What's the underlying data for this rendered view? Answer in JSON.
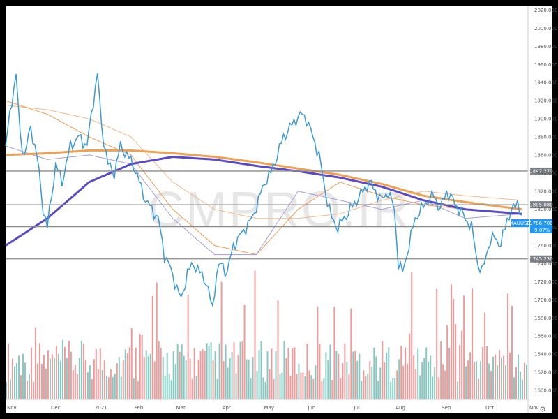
{
  "chart_data": {
    "type": "line",
    "symbol": "XAUUSD",
    "watermark": "CMPRO.IR",
    "ylim": [
      1590,
      2025
    ],
    "y_ticks": [
      1600,
      1620,
      1640,
      1660,
      1680,
      1700,
      1720,
      1740,
      1760,
      1780,
      1800,
      1820,
      1840,
      1860,
      1880,
      1900,
      1920,
      1940,
      1960,
      1980,
      2000,
      2020
    ],
    "x_ticks": [
      {
        "label": "Nov",
        "i": 0
      },
      {
        "label": "Dec",
        "i": 21
      },
      {
        "label": "2021",
        "i": 42
      },
      {
        "label": "Feb",
        "i": 61
      },
      {
        "label": "Mar",
        "i": 81
      },
      {
        "label": "Apr",
        "i": 103
      },
      {
        "label": "May",
        "i": 123
      },
      {
        "label": "Jun",
        "i": 144
      },
      {
        "label": "Jul",
        "i": 166
      },
      {
        "label": "Aug",
        "i": 186
      },
      {
        "label": "Sep",
        "i": 208
      },
      {
        "label": "Oct",
        "i": 229
      },
      {
        "label": "Nov",
        "i": 250
      }
    ],
    "levels": [
      {
        "label": "1842.270",
        "value": 1842.27
      },
      {
        "label": "1805.080",
        "value": 1805.08
      },
      {
        "label": "1780.820",
        "value": 1780.82
      },
      {
        "label": "1745.230",
        "value": 1745.23
      }
    ],
    "last_price": {
      "value": 1786.7,
      "label": "1786.700",
      "change": "-9.07%"
    },
    "price_series": {
      "name": "XAUUSD",
      "anchors": [
        [
          0,
          1870
        ],
        [
          3,
          1920
        ],
        [
          5,
          1950
        ],
        [
          7,
          1880
        ],
        [
          9,
          1860
        ],
        [
          12,
          1890
        ],
        [
          15,
          1860
        ],
        [
          18,
          1800
        ],
        [
          20,
          1780
        ],
        [
          24,
          1850
        ],
        [
          27,
          1830
        ],
        [
          31,
          1870
        ],
        [
          35,
          1880
        ],
        [
          39,
          1870
        ],
        [
          42,
          1920
        ],
        [
          44,
          1950
        ],
        [
          46,
          1890
        ],
        [
          49,
          1850
        ],
        [
          52,
          1840
        ],
        [
          55,
          1870
        ],
        [
          58,
          1860
        ],
        [
          61,
          1850
        ],
        [
          64,
          1830
        ],
        [
          67,
          1810
        ],
        [
          70,
          1800
        ],
        [
          73,
          1790
        ],
        [
          76,
          1750
        ],
        [
          78,
          1740
        ],
        [
          81,
          1720
        ],
        [
          84,
          1700
        ],
        [
          87,
          1730
        ],
        [
          90,
          1740
        ],
        [
          93,
          1730
        ],
        [
          96,
          1720
        ],
        [
          99,
          1690
        ],
        [
          101,
          1730
        ],
        [
          103,
          1740
        ],
        [
          106,
          1730
        ],
        [
          109,
          1760
        ],
        [
          112,
          1770
        ],
        [
          115,
          1780
        ],
        [
          118,
          1790
        ],
        [
          121,
          1810
        ],
        [
          124,
          1830
        ],
        [
          127,
          1840
        ],
        [
          130,
          1860
        ],
        [
          133,
          1880
        ],
        [
          136,
          1890
        ],
        [
          139,
          1900
        ],
        [
          142,
          1905
        ],
        [
          144,
          1900
        ],
        [
          147,
          1880
        ],
        [
          150,
          1860
        ],
        [
          153,
          1820
        ],
        [
          156,
          1790
        ],
        [
          159,
          1780
        ],
        [
          162,
          1790
        ],
        [
          165,
          1800
        ],
        [
          168,
          1810
        ],
        [
          171,
          1820
        ],
        [
          174,
          1830
        ],
        [
          177,
          1820
        ],
        [
          180,
          1810
        ],
        [
          183,
          1820
        ],
        [
          186,
          1800
        ],
        [
          188,
          1740
        ],
        [
          190,
          1730
        ],
        [
          193,
          1760
        ],
        [
          196,
          1790
        ],
        [
          199,
          1800
        ],
        [
          202,
          1810
        ],
        [
          205,
          1815
        ],
        [
          208,
          1800
        ],
        [
          211,
          1820
        ],
        [
          214,
          1810
        ],
        [
          217,
          1800
        ],
        [
          220,
          1790
        ],
        [
          223,
          1780
        ],
        [
          226,
          1740
        ],
        [
          228,
          1730
        ],
        [
          231,
          1760
        ],
        [
          234,
          1770
        ],
        [
          237,
          1760
        ],
        [
          240,
          1790
        ],
        [
          243,
          1800
        ],
        [
          245,
          1810
        ],
        [
          247,
          1790
        ]
      ],
      "color": "#3a9ad9"
    },
    "ma_series": [
      {
        "anchors": [
          [
            0,
            1915
          ],
          [
            20,
            1910
          ],
          [
            40,
            1900
          ],
          [
            60,
            1880
          ],
          [
            80,
            1830
          ],
          [
            100,
            1800
          ],
          [
            120,
            1790
          ],
          [
            140,
            1790
          ],
          [
            160,
            1795
          ],
          [
            180,
            1810
          ],
          [
            200,
            1820
          ],
          [
            220,
            1815
          ],
          [
            247,
            1810
          ]
        ],
        "color": "#f3b98a"
      },
      {
        "anchors": [
          [
            0,
            1920
          ],
          [
            20,
            1905
          ],
          [
            40,
            1880
          ],
          [
            60,
            1860
          ],
          [
            80,
            1800
          ],
          [
            100,
            1760
          ],
          [
            120,
            1750
          ],
          [
            140,
            1800
          ],
          [
            160,
            1830
          ],
          [
            180,
            1815
          ],
          [
            200,
            1805
          ],
          [
            220,
            1800
          ],
          [
            247,
            1795
          ]
        ],
        "color": "#f39a4d"
      },
      {
        "anchors": [
          [
            0,
            1870
          ],
          [
            20,
            1855
          ],
          [
            40,
            1860
          ],
          [
            60,
            1850
          ],
          [
            80,
            1790
          ],
          [
            100,
            1750
          ],
          [
            120,
            1750
          ],
          [
            140,
            1820
          ],
          [
            160,
            1810
          ],
          [
            180,
            1800
          ],
          [
            200,
            1810
          ],
          [
            220,
            1790
          ],
          [
            247,
            1795
          ]
        ],
        "color": "#a79be0"
      },
      {
        "anchors": [
          [
            0,
            1860
          ],
          [
            20,
            1862
          ],
          [
            40,
            1865
          ],
          [
            60,
            1865
          ],
          [
            80,
            1862
          ],
          [
            100,
            1858
          ],
          [
            120,
            1852
          ],
          [
            140,
            1845
          ],
          [
            160,
            1838
          ],
          [
            180,
            1828
          ],
          [
            200,
            1815
          ],
          [
            220,
            1808
          ],
          [
            247,
            1800
          ]
        ],
        "color": "#f0a050"
      },
      {
        "anchors": [
          [
            0,
            1760
          ],
          [
            20,
            1790
          ],
          [
            40,
            1830
          ],
          [
            60,
            1850
          ],
          [
            80,
            1858
          ],
          [
            100,
            1855
          ],
          [
            120,
            1848
          ],
          [
            140,
            1842
          ],
          [
            160,
            1835
          ],
          [
            180,
            1825
          ],
          [
            200,
            1810
          ],
          [
            220,
            1800
          ],
          [
            247,
            1795
          ]
        ],
        "color": "#5a4bc4"
      }
    ]
  }
}
